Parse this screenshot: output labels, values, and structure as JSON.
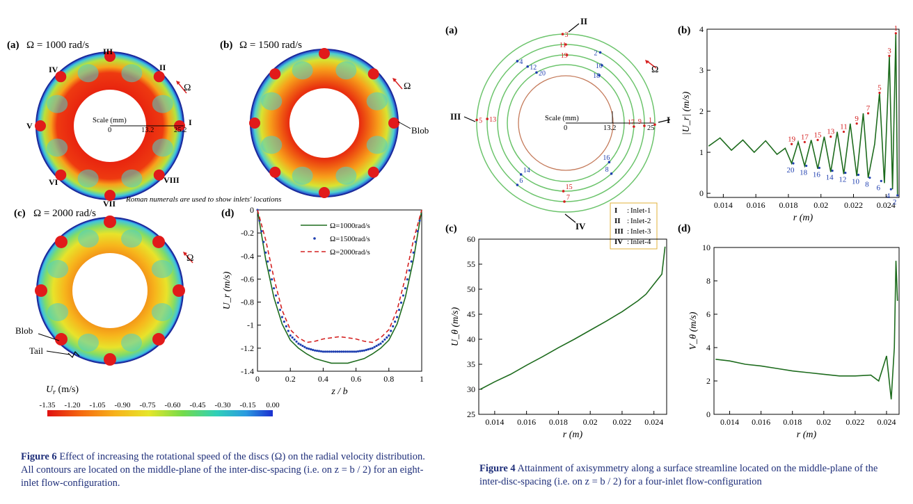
{
  "fig6": {
    "panels": [
      {
        "label": "(a)",
        "omega": "Ω = 1000 rad/s"
      },
      {
        "label": "(b)",
        "omega": "Ω = 1500 rad/s"
      },
      {
        "label": "(c)",
        "omega": "Ω = 2000 rad/s"
      },
      {
        "label": "(d)"
      }
    ],
    "omega_symbol": "Ω",
    "numerals": [
      "I",
      "II",
      "III",
      "IV",
      "V",
      "VI",
      "VII",
      "VIII"
    ],
    "scale": {
      "label": "Scale (mm)",
      "ticks": [
        "0",
        "13.2",
        "25.2"
      ]
    },
    "blob_label": "Blob",
    "tail_label": "Tail",
    "note": "Roman numerals are used to show inlets' locations",
    "colorbar": {
      "label": "U",
      "label_sub": "r",
      "unit": " (m/s)",
      "ticks": [
        "-1.35",
        "-1.20",
        "-1.05",
        "-0.90",
        "-0.75",
        "-0.60",
        "-0.45",
        "-0.30",
        "-0.15",
        "0.00"
      ]
    },
    "caption": {
      "head": "Figure 6",
      "text": "Effect of increasing the rotational speed of the discs (Ω) on the radial velocity distribution. All contours are located on the middle-plane of the inter-disc-spacing (i.e. on z = b / 2) for an eight-inlet flow-configuration."
    }
  },
  "fig4": {
    "panel_a": {
      "label": "(a)",
      "numerals": [
        "I",
        "II",
        "III",
        "IV"
      ],
      "scale": {
        "label": "Scale (mm)",
        "ticks": [
          "0",
          "13.2",
          "25"
        ]
      },
      "legend": [
        {
          "num": "I",
          "text": "Inlet-1"
        },
        {
          "num": "II",
          "text": "Inlet-2"
        },
        {
          "num": "III",
          "text": "Inlet-3"
        },
        {
          "num": "IV",
          "text": "Inlet-4"
        }
      ],
      "point_labels": [
        "1",
        "2",
        "3",
        "4",
        "5",
        "6",
        "7",
        "8",
        "9",
        "10",
        "11",
        "12",
        "13",
        "14",
        "15",
        "16",
        "17",
        "18",
        "19",
        "20"
      ]
    },
    "caption": {
      "head": "Figure 4",
      "text": "Attainment of axisymmetry along a surface streamline located on the middle-plane of the inter-disc-spacing (i.e. on z = b / 2) for a four-inlet flow-configuration"
    }
  },
  "chart_data": [
    {
      "type": "line",
      "panel": "(d)",
      "xlabel": "z / b",
      "ylabel": "U_r (m/s)",
      "xlim": [
        0,
        1
      ],
      "ylim": [
        -1.4,
        0
      ],
      "x_ticks": [
        "0",
        "0.2",
        "0.4",
        "0.6",
        "0.8",
        "1"
      ],
      "y_ticks": [
        "0",
        "-0.2",
        "-0.4",
        "-0.6",
        "-0.8",
        "-1",
        "-1.2",
        "-1.4"
      ],
      "legend_position": "top-right",
      "series": [
        {
          "name": "Ω=1000rad/s",
          "style": "solid",
          "color": "#1d6b1d",
          "x": [
            0,
            0.05,
            0.1,
            0.15,
            0.2,
            0.25,
            0.3,
            0.35,
            0.4,
            0.45,
            0.5,
            0.55,
            0.6,
            0.65,
            0.7,
            0.75,
            0.8,
            0.85,
            0.9,
            0.95,
            1
          ],
          "y": [
            0,
            -0.43,
            -0.76,
            -0.99,
            -1.13,
            -1.2,
            -1.25,
            -1.29,
            -1.31,
            -1.33,
            -1.33,
            -1.33,
            -1.31,
            -1.29,
            -1.25,
            -1.2,
            -1.13,
            -0.99,
            -0.76,
            -0.43,
            0
          ]
        },
        {
          "name": "Ω=1500rad/s",
          "style": "dots",
          "color": "#1f3fb0",
          "x": [
            0,
            0.05,
            0.1,
            0.15,
            0.2,
            0.25,
            0.3,
            0.35,
            0.4,
            0.45,
            0.5,
            0.55,
            0.6,
            0.65,
            0.7,
            0.75,
            0.8,
            0.85,
            0.9,
            0.95,
            1
          ],
          "y": [
            0,
            -0.37,
            -0.68,
            -0.93,
            -1.09,
            -1.16,
            -1.2,
            -1.22,
            -1.23,
            -1.23,
            -1.23,
            -1.23,
            -1.23,
            -1.22,
            -1.2,
            -1.16,
            -1.09,
            -0.93,
            -0.68,
            -0.37,
            0
          ]
        },
        {
          "name": "Ω=2000rad/s",
          "style": "dashed",
          "color": "#d42020",
          "x": [
            0,
            0.05,
            0.1,
            0.15,
            0.2,
            0.25,
            0.3,
            0.35,
            0.4,
            0.45,
            0.5,
            0.55,
            0.6,
            0.65,
            0.7,
            0.75,
            0.8,
            0.85,
            0.9,
            0.95,
            1
          ],
          "y": [
            0,
            -0.26,
            -0.59,
            -0.87,
            -1.04,
            -1.11,
            -1.15,
            -1.14,
            -1.12,
            -1.11,
            -1.1,
            -1.11,
            -1.12,
            -1.14,
            -1.15,
            -1.11,
            -1.04,
            -0.87,
            -0.59,
            -0.26,
            0
          ]
        }
      ]
    },
    {
      "type": "line",
      "panel": "(b)",
      "xlabel": "r (m)",
      "ylabel": "|U_r| (m/s)",
      "xlim": [
        0.013,
        0.0248
      ],
      "ylim": [
        -0.1,
        4
      ],
      "x_ticks": [
        "0.014",
        "0.016",
        "0.018",
        "0.02",
        "0.022",
        "0.024"
      ],
      "y_ticks": [
        "0",
        "1",
        "2",
        "3",
        "4"
      ],
      "peaks": [
        {
          "label": "1",
          "x": 0.0246,
          "y": 3.9
        },
        {
          "label": "3",
          "x": 0.0242,
          "y": 3.35
        },
        {
          "label": "5",
          "x": 0.0236,
          "y": 2.45
        },
        {
          "label": "7",
          "x": 0.0229,
          "y": 1.95
        },
        {
          "label": "9",
          "x": 0.0222,
          "y": 1.7
        },
        {
          "label": "11",
          "x": 0.0214,
          "y": 1.5
        },
        {
          "label": "13",
          "x": 0.0206,
          "y": 1.38
        },
        {
          "label": "15",
          "x": 0.0198,
          "y": 1.3
        },
        {
          "label": "17",
          "x": 0.019,
          "y": 1.25
        },
        {
          "label": "19",
          "x": 0.0182,
          "y": 1.2
        }
      ],
      "troughs": [
        {
          "label": "2",
          "x": 0.0247,
          "y": -0.05
        },
        {
          "label": "4",
          "x": 0.0243,
          "y": 0.1
        },
        {
          "label": "6",
          "x": 0.0237,
          "y": 0.3
        },
        {
          "label": "8",
          "x": 0.023,
          "y": 0.38
        },
        {
          "label": "10",
          "x": 0.0223,
          "y": 0.45
        },
        {
          "label": "12",
          "x": 0.0215,
          "y": 0.5
        },
        {
          "label": "14",
          "x": 0.0207,
          "y": 0.55
        },
        {
          "label": "16",
          "x": 0.0199,
          "y": 0.62
        },
        {
          "label": "18",
          "x": 0.0191,
          "y": 0.67
        },
        {
          "label": "20",
          "x": 0.0183,
          "y": 0.73
        }
      ],
      "series": [
        {
          "color": "#1d6b1d",
          "x": [
            0.0131,
            0.0138,
            0.0145,
            0.0152,
            0.0159,
            0.0166,
            0.0173,
            0.0178,
            0.0182,
            0.0186,
            0.019,
            0.0194,
            0.0198,
            0.0202,
            0.0206,
            0.021,
            0.0214,
            0.0218,
            0.0222,
            0.0226,
            0.0229,
            0.0233,
            0.0236,
            0.0239,
            0.0242,
            0.0244,
            0.0246,
            0.0247
          ],
          "y": [
            1.15,
            1.35,
            1.05,
            1.3,
            1.0,
            1.28,
            0.95,
            1.1,
            0.73,
            1.25,
            0.67,
            1.3,
            0.6,
            1.38,
            0.52,
            1.5,
            0.47,
            1.7,
            0.42,
            1.95,
            0.38,
            1.2,
            2.45,
            0.25,
            3.35,
            0.1,
            3.9,
            -0.05
          ]
        }
      ]
    },
    {
      "type": "line",
      "panel": "(c)",
      "xlabel": "r (m)",
      "ylabel": "U_θ (m/s)",
      "xlim": [
        0.013,
        0.0248
      ],
      "ylim": [
        25,
        60
      ],
      "x_ticks": [
        "0.014",
        "0.016",
        "0.018",
        "0.02",
        "0.022",
        "0.024"
      ],
      "y_ticks": [
        "25",
        "30",
        "35",
        "40",
        "45",
        "50",
        "55",
        "60"
      ],
      "series": [
        {
          "color": "#1d6b1d",
          "x": [
            0.0131,
            0.014,
            0.015,
            0.016,
            0.017,
            0.018,
            0.019,
            0.02,
            0.021,
            0.022,
            0.023,
            0.0235,
            0.024,
            0.0245,
            0.0247
          ],
          "y": [
            30,
            31.5,
            33,
            34.8,
            36.5,
            38.3,
            40,
            41.8,
            43.6,
            45.5,
            47.7,
            49,
            51,
            53,
            58.5
          ]
        }
      ]
    },
    {
      "type": "line",
      "panel": "(d)",
      "xlabel": "r (m)",
      "ylabel": "V_θ (m/s)",
      "xlim": [
        0.013,
        0.0248
      ],
      "ylim": [
        0,
        10
      ],
      "x_ticks": [
        "0.014",
        "0.016",
        "0.018",
        "0.02",
        "0.022",
        "0.024"
      ],
      "y_ticks": [
        "0",
        "2",
        "4",
        "6",
        "8",
        "10"
      ],
      "series": [
        {
          "color": "#1d6b1d",
          "x": [
            0.0131,
            0.014,
            0.015,
            0.016,
            0.017,
            0.018,
            0.019,
            0.02,
            0.021,
            0.022,
            0.023,
            0.0235,
            0.024,
            0.0243,
            0.0245,
            0.0246,
            0.0247
          ],
          "y": [
            3.3,
            3.2,
            3.0,
            2.9,
            2.75,
            2.6,
            2.5,
            2.4,
            2.3,
            2.3,
            2.35,
            2.0,
            3.5,
            0.9,
            4.0,
            9.2,
            6.8
          ]
        }
      ]
    }
  ]
}
